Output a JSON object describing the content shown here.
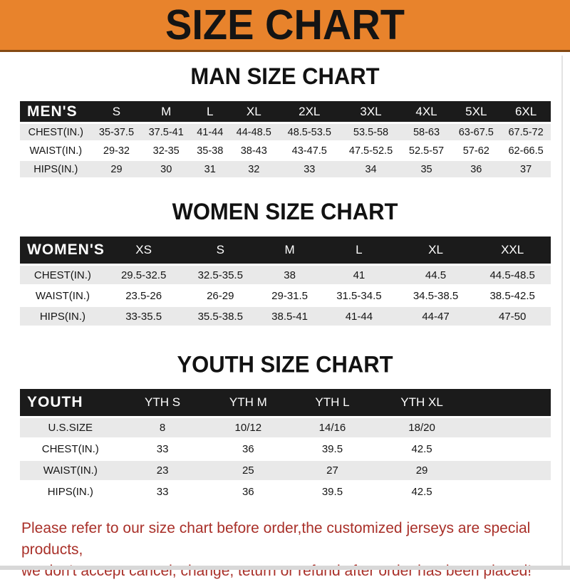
{
  "banner": {
    "title": "SIZE CHART"
  },
  "colors": {
    "banner_bg": "#E8832C",
    "header_bg": "#1B1B1B",
    "row_alt_bg": "#E9E9E9",
    "footer_text": "#A93029"
  },
  "sections": {
    "men": {
      "title": "MAN SIZE CHART",
      "table": {
        "header": [
          "MEN'S",
          "S",
          "M",
          "L",
          "XL",
          "2XL",
          "3XL",
          "4XL",
          "5XL",
          "6XL"
        ],
        "rows": [
          [
            "CHEST(IN.)",
            "35-37.5",
            "37.5-41",
            "41-44",
            "44-48.5",
            "48.5-53.5",
            "53.5-58",
            "58-63",
            "63-67.5",
            "67.5-72"
          ],
          [
            "WAIST(IN.)",
            "29-32",
            "32-35",
            "35-38",
            "38-43",
            "43-47.5",
            "47.5-52.5",
            "52.5-57",
            "57-62",
            "62-66.5"
          ],
          [
            "HIPS(IN.)",
            "29",
            "30",
            "31",
            "32",
            "33",
            "34",
            "35",
            "36",
            "37"
          ]
        ]
      }
    },
    "women": {
      "title": "WOMEN SIZE CHART",
      "table": {
        "header": [
          "WOMEN'S",
          "XS",
          "S",
          "M",
          "L",
          "XL",
          "XXL"
        ],
        "rows": [
          [
            "CHEST(IN.)",
            "29.5-32.5",
            "32.5-35.5",
            "38",
            "41",
            "44.5",
            "44.5-48.5"
          ],
          [
            "WAIST(IN.)",
            "23.5-26",
            "26-29",
            "29-31.5",
            "31.5-34.5",
            "34.5-38.5",
            "38.5-42.5"
          ],
          [
            "HIPS(IN.)",
            "33-35.5",
            "35.5-38.5",
            "38.5-41",
            "41-44",
            "44-47",
            "47-50"
          ]
        ]
      }
    },
    "youth": {
      "title": "YOUTH SIZE CHART",
      "table": {
        "filler_cols": 1,
        "header": [
          "YOUTH",
          "YTH S",
          "YTH M",
          "YTH L",
          "YTH XL"
        ],
        "rows": [
          [
            "U.S.SIZE",
            "8",
            "10/12",
            "14/16",
            "18/20"
          ],
          [
            "CHEST(IN.)",
            "33",
            "36",
            "39.5",
            "42.5"
          ],
          [
            "WAIST(IN.)",
            "23",
            "25",
            "27",
            "29"
          ],
          [
            "HIPS(IN.)",
            "33",
            "36",
            "39.5",
            "42.5"
          ]
        ]
      }
    }
  },
  "footer": {
    "line1": "Please refer to our size chart before order,the customized jerseys are special products,",
    "line2": "we don't accept cancel, change, teturn or refund after order has been placed!"
  }
}
